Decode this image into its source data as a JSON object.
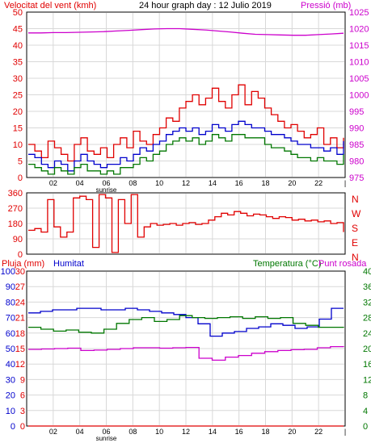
{
  "colors": {
    "wind": "#e00000",
    "pressure": "#cc00cc",
    "humidity": "#0000cc",
    "temperature": "#007700",
    "dewpoint": "#cc00cc",
    "rain": "#e00000",
    "humidity_axis": "#0000cc",
    "temp_axis": "#007700",
    "rain_axis": "#e00000",
    "grid": "#d8d8d8"
  },
  "header": {
    "wind_label": "Velocitat del vent (kmh)",
    "title": "24 hour graph day : 12 Julio 2019",
    "pressure_label": "Pressió (mb)"
  },
  "middle": {
    "dir_labels": [
      "N",
      "W",
      "S",
      "E",
      "N"
    ]
  },
  "bottom_header": {
    "rain_label": "Pluja (mm)",
    "humidity_label": "Humitat",
    "temp_label": "Temperatura (°C)",
    "dew_label": "Punt rosada"
  },
  "sunrise_label": "sunrise",
  "chart_data": [
    {
      "type": "line",
      "name": "wind_pressure",
      "x_ticks": [
        "02",
        "04",
        "06",
        "08",
        "10",
        "12",
        "14",
        "16",
        "18",
        "20",
        "22"
      ],
      "x_range_hours": [
        0,
        24
      ],
      "y_left_ticks": [
        0,
        5,
        10,
        15,
        20,
        25,
        30,
        35,
        40,
        45,
        50
      ],
      "y_left_range": [
        0,
        50
      ],
      "y_right_ticks": [
        975,
        980,
        985,
        990,
        995,
        1000,
        1005,
        1010,
        1015,
        1020,
        1025
      ],
      "y_right_range": [
        975,
        1025
      ],
      "series": [
        {
          "key": "wind_gust",
          "axis": "left",
          "color_key": "wind",
          "values": [
            10,
            8,
            6,
            11,
            9,
            7,
            5,
            10,
            12,
            8,
            7,
            9,
            6,
            10,
            12,
            9,
            14,
            11,
            10,
            13,
            15,
            18,
            17,
            21,
            23,
            25,
            22,
            24,
            27,
            23,
            21,
            25,
            28,
            22,
            26,
            24,
            21,
            19,
            17,
            15,
            16,
            14,
            12,
            13,
            15,
            10,
            12,
            9,
            12
          ]
        },
        {
          "key": "wind_avg",
          "axis": "left",
          "color_key": "humidity",
          "values": [
            7,
            6,
            4,
            3,
            5,
            4,
            2,
            5,
            7,
            5,
            4,
            3,
            4,
            4,
            6,
            5,
            7,
            9,
            8,
            10,
            11,
            13,
            14,
            15,
            14,
            15,
            13,
            14,
            16,
            15,
            14,
            16,
            17,
            16,
            15,
            15,
            14,
            13,
            13,
            12,
            11,
            10,
            10,
            9,
            9,
            8,
            9,
            7,
            11
          ]
        },
        {
          "key": "wind_min",
          "axis": "left",
          "color_key": "temperature",
          "values": [
            4,
            3,
            2,
            1,
            3,
            2,
            1,
            3,
            4,
            2,
            2,
            1,
            2,
            1,
            3,
            3,
            4,
            6,
            5,
            7,
            8,
            10,
            11,
            12,
            11,
            12,
            10,
            11,
            13,
            12,
            11,
            13,
            13,
            12,
            12,
            12,
            10,
            9,
            9,
            8,
            7,
            6,
            6,
            5,
            6,
            5,
            5,
            4,
            7
          ]
        },
        {
          "key": "pressure",
          "axis": "right",
          "color_key": "pressure",
          "values": [
            1018.7,
            1018.7,
            1018.8,
            1018.8,
            1018.9,
            1019,
            1019.1,
            1019.3,
            1019.5,
            1019.7,
            1019.9,
            1020,
            1020,
            1019.8,
            1019.6,
            1019.3,
            1019,
            1018.6,
            1018.3,
            1018.2,
            1018.1,
            1018,
            1018,
            1018.2,
            1018.4,
            1018.6
          ]
        }
      ]
    },
    {
      "type": "line",
      "name": "wind_direction",
      "y_ticks": [
        0,
        90,
        180,
        270,
        360
      ],
      "y_range": [
        0,
        360
      ],
      "series": [
        {
          "key": "direction",
          "color_key": "wind",
          "values": [
            140,
            150,
            130,
            320,
            160,
            100,
            130,
            330,
            340,
            320,
            40,
            350,
            330,
            10,
            320,
            180,
            350,
            100,
            160,
            180,
            170,
            175,
            180,
            170,
            180,
            185,
            175,
            180,
            200,
            220,
            240,
            230,
            250,
            240,
            225,
            235,
            230,
            220,
            210,
            220,
            215,
            200,
            205,
            195,
            200,
            190,
            195,
            180,
            185,
            130
          ]
        }
      ]
    },
    {
      "type": "line",
      "name": "rain_humidity_temp",
      "y_left_outer_ticks": [
        0,
        10,
        20,
        30,
        40,
        50,
        60,
        70,
        80,
        90,
        100
      ],
      "y_left_inner_ticks": [
        0,
        3,
        6,
        9,
        12,
        15,
        18,
        21,
        24,
        27,
        30
      ],
      "y_right_ticks": [
        0,
        4,
        8,
        12,
        16,
        20,
        24,
        28,
        32,
        36,
        40
      ],
      "series": [
        {
          "key": "humidity",
          "axis": "left_outer",
          "color_key": "humidity",
          "values": [
            73,
            74,
            75,
            75,
            76,
            76,
            75,
            75,
            76,
            75,
            74,
            73,
            72,
            70,
            66,
            58,
            60,
            61,
            63,
            64,
            66,
            65,
            63,
            64,
            69,
            76,
            76
          ]
        },
        {
          "key": "temperature",
          "axis": "right",
          "color_key": "temperature",
          "values": [
            25.5,
            25,
            24.5,
            24.8,
            24.2,
            24,
            25,
            26.5,
            27.5,
            28,
            27,
            27.5,
            28.5,
            28,
            27.8,
            28,
            28.2,
            27.8,
            28.2,
            27.8,
            28,
            26.5,
            26,
            25.5,
            25.5,
            25.4
          ]
        },
        {
          "key": "dewpoint",
          "axis": "right",
          "color_key": "dewpoint",
          "values": [
            19.8,
            19.9,
            20,
            20.1,
            19.5,
            19.6,
            19.8,
            20,
            20.2,
            20.2,
            20.1,
            20.2,
            20.3,
            17.5,
            17,
            17.8,
            18.2,
            18.8,
            19.2,
            19.5,
            19.7,
            19.8,
            20.2,
            20.5,
            20.4
          ]
        },
        {
          "key": "rain",
          "axis": "left_inner",
          "color_key": "rain",
          "values": [
            0,
            0,
            0,
            0,
            0,
            0,
            0,
            0,
            0,
            0,
            0,
            0,
            0,
            0,
            0,
            0,
            0,
            0,
            0,
            0,
            0,
            0,
            0,
            0,
            0
          ]
        }
      ]
    }
  ]
}
